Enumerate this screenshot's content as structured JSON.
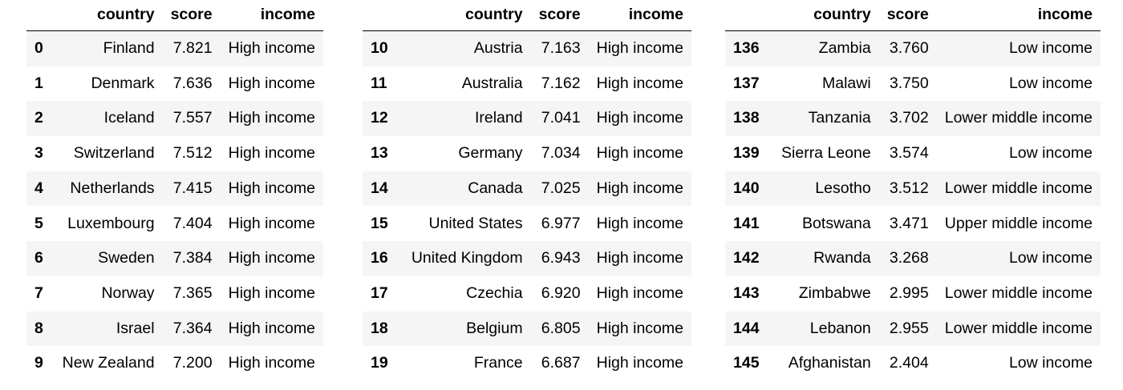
{
  "headers": {
    "index": "",
    "country": "country",
    "score": "score",
    "income": "income"
  },
  "tables": [
    {
      "rows": [
        {
          "index": "0",
          "country": "Finland",
          "score": "7.821",
          "income": "High income"
        },
        {
          "index": "1",
          "country": "Denmark",
          "score": "7.636",
          "income": "High income"
        },
        {
          "index": "2",
          "country": "Iceland",
          "score": "7.557",
          "income": "High income"
        },
        {
          "index": "3",
          "country": "Switzerland",
          "score": "7.512",
          "income": "High income"
        },
        {
          "index": "4",
          "country": "Netherlands",
          "score": "7.415",
          "income": "High income"
        },
        {
          "index": "5",
          "country": "Luxembourg",
          "score": "7.404",
          "income": "High income"
        },
        {
          "index": "6",
          "country": "Sweden",
          "score": "7.384",
          "income": "High income"
        },
        {
          "index": "7",
          "country": "Norway",
          "score": "7.365",
          "income": "High income"
        },
        {
          "index": "8",
          "country": "Israel",
          "score": "7.364",
          "income": "High income"
        },
        {
          "index": "9",
          "country": "New Zealand",
          "score": "7.200",
          "income": "High income"
        }
      ]
    },
    {
      "rows": [
        {
          "index": "10",
          "country": "Austria",
          "score": "7.163",
          "income": "High income"
        },
        {
          "index": "11",
          "country": "Australia",
          "score": "7.162",
          "income": "High income"
        },
        {
          "index": "12",
          "country": "Ireland",
          "score": "7.041",
          "income": "High income"
        },
        {
          "index": "13",
          "country": "Germany",
          "score": "7.034",
          "income": "High income"
        },
        {
          "index": "14",
          "country": "Canada",
          "score": "7.025",
          "income": "High income"
        },
        {
          "index": "15",
          "country": "United States",
          "score": "6.977",
          "income": "High income"
        },
        {
          "index": "16",
          "country": "United Kingdom",
          "score": "6.943",
          "income": "High income"
        },
        {
          "index": "17",
          "country": "Czechia",
          "score": "6.920",
          "income": "High income"
        },
        {
          "index": "18",
          "country": "Belgium",
          "score": "6.805",
          "income": "High income"
        },
        {
          "index": "19",
          "country": "France",
          "score": "6.687",
          "income": "High income"
        }
      ]
    },
    {
      "rows": [
        {
          "index": "136",
          "country": "Zambia",
          "score": "3.760",
          "income": "Low income"
        },
        {
          "index": "137",
          "country": "Malawi",
          "score": "3.750",
          "income": "Low income"
        },
        {
          "index": "138",
          "country": "Tanzania",
          "score": "3.702",
          "income": "Lower middle income"
        },
        {
          "index": "139",
          "country": "Sierra Leone",
          "score": "3.574",
          "income": "Low income"
        },
        {
          "index": "140",
          "country": "Lesotho",
          "score": "3.512",
          "income": "Lower middle income"
        },
        {
          "index": "141",
          "country": "Botswana",
          "score": "3.471",
          "income": "Upper middle income"
        },
        {
          "index": "142",
          "country": "Rwanda",
          "score": "3.268",
          "income": "Low income"
        },
        {
          "index": "143",
          "country": "Zimbabwe",
          "score": "2.995",
          "income": "Lower middle income"
        },
        {
          "index": "144",
          "country": "Lebanon",
          "score": "2.955",
          "income": "Lower middle income"
        },
        {
          "index": "145",
          "country": "Afghanistan",
          "score": "2.404",
          "income": "Low income"
        }
      ]
    }
  ]
}
